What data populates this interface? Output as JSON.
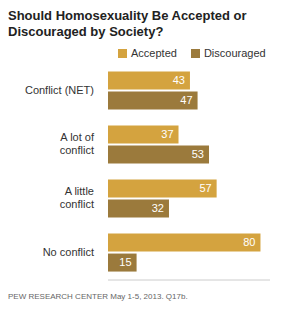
{
  "chart_data": {
    "type": "bar",
    "title": "Should Homosexuality Be Accepted or Discouraged by Society?",
    "orientation": "horizontal",
    "categories": [
      "Conflict (NET)",
      "A lot of conflict",
      "A little conflict",
      "No conflict"
    ],
    "series": [
      {
        "name": "Accepted",
        "color": "#d4a33f",
        "values": [
          43,
          37,
          57,
          80
        ]
      },
      {
        "name": "Discouraged",
        "color": "#9b7a3c",
        "values": [
          47,
          53,
          32,
          15
        ]
      }
    ],
    "xlim": [
      0,
      85
    ],
    "data_labels": true,
    "tick_labels": "y",
    "legend": "top",
    "grid": false,
    "annotations": [
      "PEW RESEARCH CENTER May 1-5, 2013. Q17b."
    ]
  }
}
